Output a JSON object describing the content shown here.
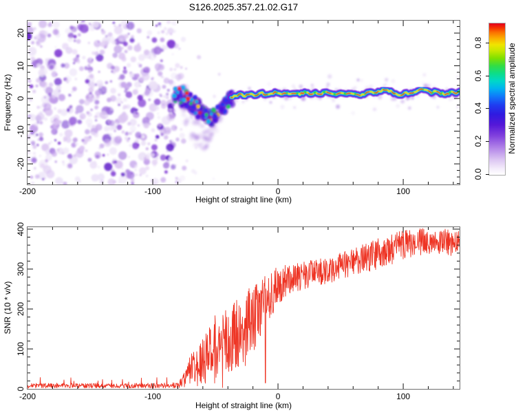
{
  "title": "S126.2025.357.21.02.G17",
  "colors": {
    "frame": "#6e6e6e",
    "tick": "#111111",
    "text": "#000000",
    "snr_line": "#ee3424",
    "noise_palette": [
      "#ece2f8",
      "#dcc6f2",
      "#c3a0ea",
      "#a173de",
      "#7b33d2",
      "#5c14c8"
    ],
    "cluster_halo": "#6a1fd0",
    "cluster_cores": [
      "#2a2af0",
      "#00b4f0",
      "#18cc55",
      "#4a10e0",
      "#ffd800",
      "#ff2a00"
    ],
    "line_layers": [
      "#7a22dd",
      "#2222ee",
      "#00c8ee",
      "#2fd838",
      "#f2e000",
      "#ee2211"
    ]
  },
  "chart_data": [
    {
      "type": "heatmap",
      "title": "S126.2025.357.21.02.G17",
      "xlabel": "Height of straight line (km)",
      "ylabel": "Frequency (Hz)",
      "x_range": [
        -200,
        145
      ],
      "y_range": [
        -26.3,
        23.8
      ],
      "x_major_ticks": [
        -200,
        -100,
        0,
        100
      ],
      "x_tick_labels": [
        "-200",
        "-100",
        "0",
        "100"
      ],
      "x_minor_step": 20,
      "y_major_ticks": [
        20,
        10,
        0,
        -10,
        -20
      ],
      "y_tick_labels": [
        "20",
        "10",
        "0",
        "-10",
        "-20"
      ],
      "y_minor_step": 2,
      "noise_region": {
        "x_start_km": -200,
        "x_end_km": -83,
        "description": "speckled purple background noise filling full frequency range"
      },
      "cluster_track": [
        [
          -83,
          1.5
        ],
        [
          -78,
          0.8
        ],
        [
          -73,
          -0.2
        ],
        [
          -68,
          -1.5
        ],
        [
          -63,
          -3.2
        ],
        [
          -58,
          -5.2
        ],
        [
          -54,
          -5.8
        ],
        [
          -50,
          -4.8
        ],
        [
          -46,
          -3.2
        ],
        [
          -42,
          -1.5
        ],
        [
          -38,
          0.3
        ]
      ],
      "cluster_spread_hz": 3.2,
      "wedge": {
        "x_start_km": -80,
        "x_peak_km": -62,
        "x_end_km": -42,
        "min_freq_hz": -18
      },
      "line_track": [
        [
          -38,
          0.3
        ],
        [
          -34,
          0.8
        ],
        [
          -30,
          1.2
        ],
        [
          -26,
          0.8
        ],
        [
          -22,
          1.4
        ],
        [
          -18,
          1.0
        ],
        [
          -14,
          1.8
        ],
        [
          -10,
          1.2
        ],
        [
          -6,
          1.6
        ],
        [
          -2,
          1.9
        ],
        [
          2,
          1.4
        ],
        [
          6,
          1.7
        ],
        [
          10,
          1.3
        ],
        [
          14,
          1.8
        ],
        [
          18,
          1.4
        ],
        [
          22,
          1.9
        ],
        [
          26,
          1.3
        ],
        [
          30,
          1.7
        ],
        [
          34,
          1.2
        ],
        [
          38,
          2.2
        ],
        [
          42,
          1.5
        ],
        [
          46,
          1.1
        ],
        [
          50,
          1.8
        ],
        [
          54,
          1.3
        ],
        [
          58,
          1.9
        ],
        [
          62,
          1.4
        ],
        [
          66,
          1.0
        ],
        [
          70,
          1.6
        ],
        [
          74,
          2.1
        ],
        [
          78,
          1.5
        ],
        [
          82,
          2.4
        ],
        [
          86,
          2.9
        ],
        [
          90,
          2.2
        ],
        [
          94,
          1.4
        ],
        [
          98,
          1.1
        ],
        [
          102,
          1.7
        ],
        [
          106,
          1.4
        ],
        [
          110,
          1.9
        ],
        [
          114,
          3.2
        ],
        [
          118,
          2.6
        ],
        [
          122,
          1.8
        ],
        [
          126,
          2.3
        ],
        [
          130,
          1.6
        ],
        [
          134,
          1.2
        ],
        [
          138,
          1.9
        ],
        [
          142,
          1.6
        ],
        [
          145,
          2.0
        ]
      ],
      "colorbar": {
        "label": "Normalized spectral amplitude",
        "tick_values": [
          0.0,
          0.2,
          0.4,
          0.6,
          0.8
        ],
        "tick_labels": [
          "0.0",
          "0.2",
          "0.4",
          "0.6",
          "0.8"
        ],
        "max_value": 0.92,
        "gradient_stops": [
          [
            0,
            "#ffffff"
          ],
          [
            4,
            "#f4edfb"
          ],
          [
            10,
            "#dcc6f2"
          ],
          [
            18,
            "#b183e8"
          ],
          [
            26,
            "#8040dd"
          ],
          [
            33,
            "#5518d8"
          ],
          [
            40,
            "#2f1ae0"
          ],
          [
            46,
            "#1f3cf0"
          ],
          [
            52,
            "#0f7bfa"
          ],
          [
            57,
            "#00b4f0"
          ],
          [
            62,
            "#00d8c8"
          ],
          [
            67,
            "#0ddd88"
          ],
          [
            72,
            "#33dd44"
          ],
          [
            77,
            "#7fe000"
          ],
          [
            82,
            "#c8e800"
          ],
          [
            86,
            "#f0e400"
          ],
          [
            90,
            "#fbb000"
          ],
          [
            94,
            "#fb7300"
          ],
          [
            97,
            "#f53200"
          ],
          [
            100,
            "#e4001e"
          ]
        ]
      }
    },
    {
      "type": "line",
      "xlabel": "Height of straight line (km)",
      "ylabel": "SNR (10 * v/v)",
      "x_range": [
        -200,
        145
      ],
      "y_range": [
        0,
        405
      ],
      "x_major_ticks": [
        -200,
        -100,
        0,
        100
      ],
      "x_tick_labels": [
        "-200",
        "-100",
        "0",
        "100"
      ],
      "x_minor_step": 20,
      "y_major_ticks": [
        0,
        100,
        200,
        300,
        400
      ],
      "y_tick_labels": [
        "0",
        "100",
        "200",
        "300",
        "400"
      ],
      "y_minor_step": 20,
      "line_color": "#ee3424",
      "noise_floor": 8,
      "dip": {
        "km": -10,
        "value": 15
      },
      "envelope": [
        [
          -200,
          8,
          6
        ],
        [
          -110,
          8,
          6
        ],
        [
          -85,
          9,
          7
        ],
        [
          -80,
          11,
          9
        ],
        [
          -76,
          18,
          15
        ],
        [
          -72,
          38,
          32
        ],
        [
          -68,
          55,
          48
        ],
        [
          -64,
          52,
          46
        ],
        [
          -60,
          80,
          70
        ],
        [
          -56,
          75,
          68
        ],
        [
          -52,
          100,
          88
        ],
        [
          -48,
          95,
          85
        ],
        [
          -44,
          115,
          95
        ],
        [
          -40,
          100,
          88
        ],
        [
          -36,
          125,
          95
        ],
        [
          -32,
          145,
          100
        ],
        [
          -28,
          135,
          95
        ],
        [
          -24,
          160,
          92
        ],
        [
          -20,
          172,
          85
        ],
        [
          -16,
          192,
          76
        ],
        [
          -12,
          212,
          68
        ],
        [
          -8,
          228,
          62
        ],
        [
          -4,
          242,
          56
        ],
        [
          0,
          255,
          52
        ],
        [
          5,
          266,
          45
        ],
        [
          10,
          276,
          40
        ],
        [
          15,
          280,
          38
        ],
        [
          20,
          286,
          36
        ],
        [
          25,
          289,
          36
        ],
        [
          30,
          292,
          35
        ],
        [
          35,
          295,
          35
        ],
        [
          40,
          298,
          34
        ],
        [
          45,
          303,
          34
        ],
        [
          50,
          308,
          34
        ],
        [
          55,
          313,
          34
        ],
        [
          60,
          318,
          35
        ],
        [
          65,
          323,
          35
        ],
        [
          70,
          328,
          36
        ],
        [
          75,
          333,
          38
        ],
        [
          80,
          338,
          40
        ],
        [
          85,
          344,
          40
        ],
        [
          90,
          349,
          40
        ],
        [
          95,
          354,
          40
        ],
        [
          100,
          358,
          38
        ],
        [
          105,
          363,
          36
        ],
        [
          110,
          367,
          35
        ],
        [
          115,
          369,
          35
        ],
        [
          120,
          371,
          34
        ],
        [
          125,
          372,
          34
        ],
        [
          130,
          371,
          34
        ],
        [
          135,
          369,
          34
        ],
        [
          140,
          366,
          33
        ],
        [
          145,
          361,
          33
        ]
      ]
    }
  ]
}
